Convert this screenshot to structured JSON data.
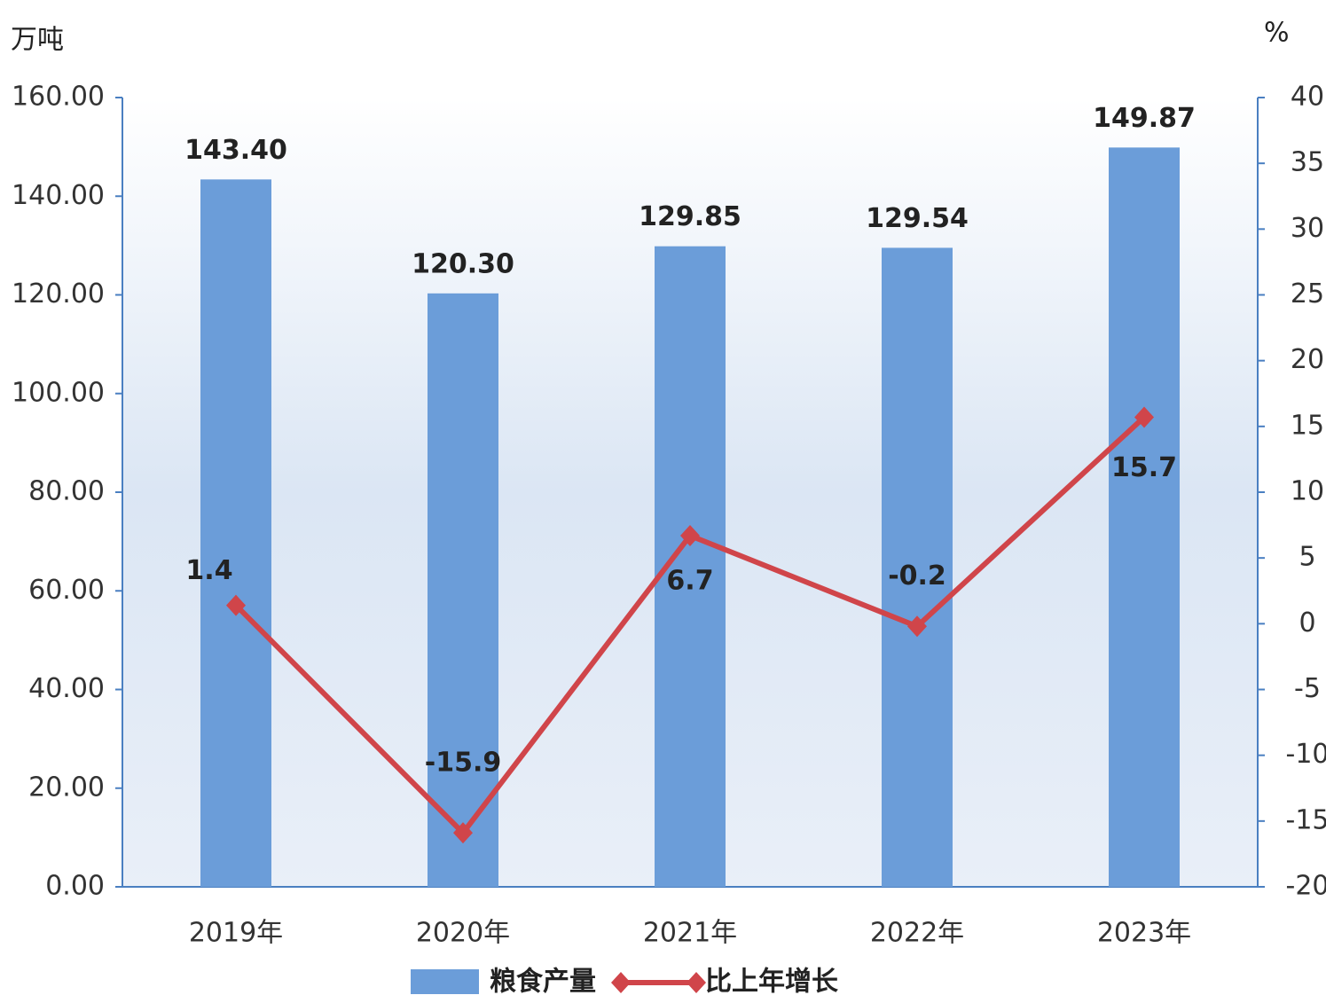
{
  "chart_data": {
    "type": "bar-line",
    "y_label": "万吨",
    "y2_label": "%",
    "categories": [
      "2019年",
      "2020年",
      "2021年",
      "2022年",
      "2023年"
    ],
    "series": [
      {
        "name": "粮食产量",
        "type": "bar",
        "color": "#6b9dd9",
        "values": [
          143.4,
          120.3,
          129.85,
          129.54,
          149.87
        ],
        "value_labels": [
          "143.40",
          "120.30",
          "129.85",
          "129.54",
          "149.87"
        ]
      },
      {
        "name": "比上年增长",
        "type": "line",
        "axis": "y2",
        "color": "#d0454a",
        "values": [
          1.4,
          -15.9,
          6.7,
          -0.2,
          15.7
        ]
      }
    ],
    "ylim": [
      0,
      160
    ],
    "yticks": [
      {
        "value": 0,
        "label": "0.00"
      },
      {
        "value": 20,
        "label": "20.00"
      },
      {
        "value": 40,
        "label": "40.00"
      },
      {
        "value": 60,
        "label": "60.00"
      },
      {
        "value": 80,
        "label": "80.00"
      },
      {
        "value": 100,
        "label": "100.00"
      },
      {
        "value": 120,
        "label": "120.00"
      },
      {
        "value": 140,
        "label": "140.00"
      },
      {
        "value": 160,
        "label": "160.00"
      }
    ],
    "y2lim": [
      -20,
      40
    ],
    "y2ticks": [
      -20,
      -15,
      -10,
      -5,
      0,
      5,
      10,
      15,
      20,
      25,
      30,
      35,
      40
    ],
    "legend": "bottom",
    "grid": false
  }
}
